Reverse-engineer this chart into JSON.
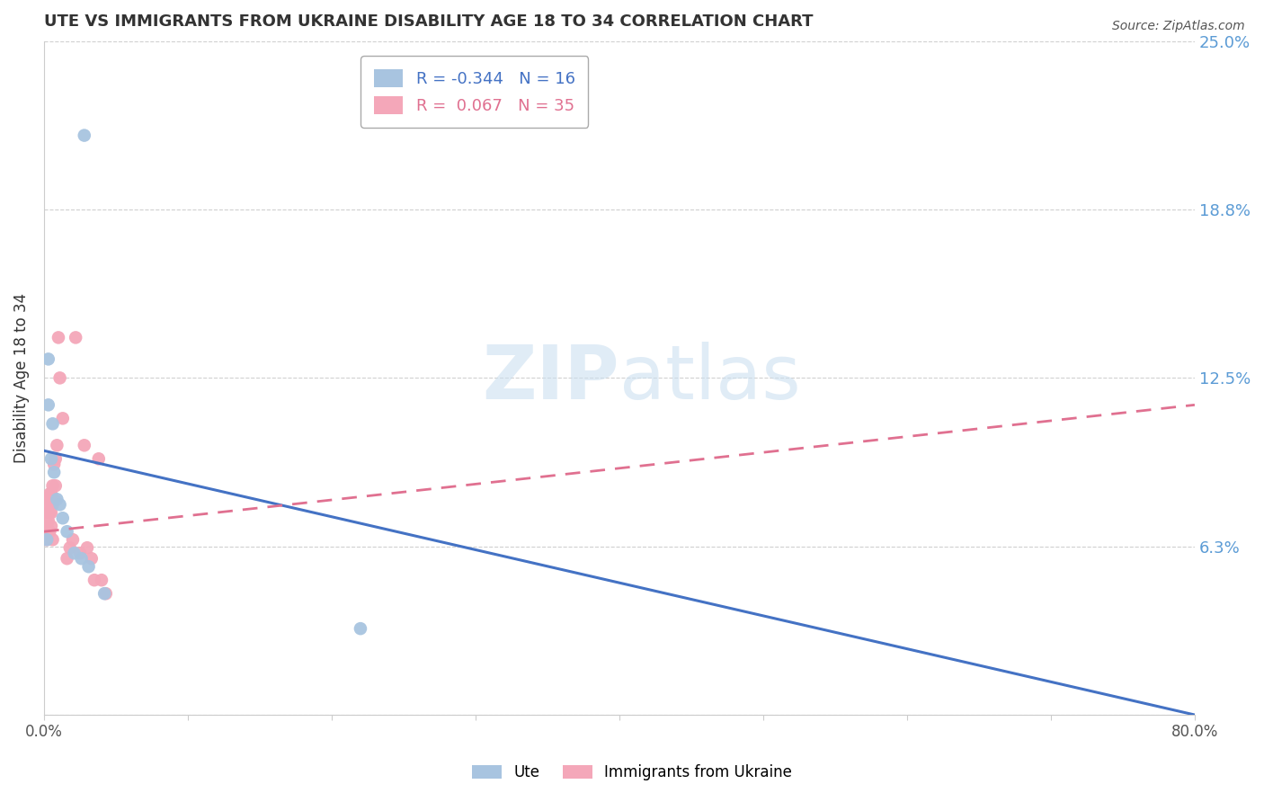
{
  "title": "UTE VS IMMIGRANTS FROM UKRAINE DISABILITY AGE 18 TO 34 CORRELATION CHART",
  "source": "Source: ZipAtlas.com",
  "ylabel": "Disability Age 18 to 34",
  "xlim": [
    0.0,
    0.8
  ],
  "ylim": [
    0.0,
    0.25
  ],
  "watermark_zip": "ZIP",
  "watermark_atlas": "atlas",
  "ute_color": "#a8c4e0",
  "ukraine_color": "#f4a7b9",
  "ute_line_color": "#4472c4",
  "ukraine_line_color": "#e07090",
  "background_color": "#ffffff",
  "grid_color": "#d0d0d0",
  "ute_R": -0.344,
  "ute_N": 16,
  "ukraine_R": 0.067,
  "ukraine_N": 35,
  "ute_line_x0": 0.0,
  "ute_line_y0": 0.098,
  "ute_line_x1": 0.8,
  "ute_line_y1": 0.0,
  "ukraine_line_x0": 0.0,
  "ukraine_line_y0": 0.068,
  "ukraine_line_x1": 0.8,
  "ukraine_line_y1": 0.115,
  "ute_scatter_x": [
    0.028,
    0.003,
    0.003,
    0.006,
    0.005,
    0.007,
    0.009,
    0.011,
    0.013,
    0.016,
    0.002,
    0.021,
    0.026,
    0.031,
    0.22,
    0.042
  ],
  "ute_scatter_y": [
    0.215,
    0.132,
    0.115,
    0.108,
    0.095,
    0.09,
    0.08,
    0.078,
    0.073,
    0.068,
    0.065,
    0.06,
    0.058,
    0.055,
    0.032,
    0.045
  ],
  "ukraine_scatter_x": [
    0.002,
    0.002,
    0.002,
    0.002,
    0.003,
    0.003,
    0.004,
    0.004,
    0.004,
    0.005,
    0.005,
    0.005,
    0.006,
    0.006,
    0.006,
    0.007,
    0.007,
    0.008,
    0.008,
    0.009,
    0.01,
    0.011,
    0.013,
    0.016,
    0.018,
    0.02,
    0.022,
    0.025,
    0.028,
    0.03,
    0.033,
    0.035,
    0.038,
    0.04,
    0.043
  ],
  "ukraine_scatter_y": [
    0.08,
    0.075,
    0.07,
    0.065,
    0.078,
    0.072,
    0.068,
    0.082,
    0.075,
    0.082,
    0.075,
    0.07,
    0.078,
    0.065,
    0.085,
    0.093,
    0.08,
    0.095,
    0.085,
    0.1,
    0.14,
    0.125,
    0.11,
    0.058,
    0.062,
    0.065,
    0.14,
    0.06,
    0.1,
    0.062,
    0.058,
    0.05,
    0.095,
    0.05,
    0.045
  ]
}
